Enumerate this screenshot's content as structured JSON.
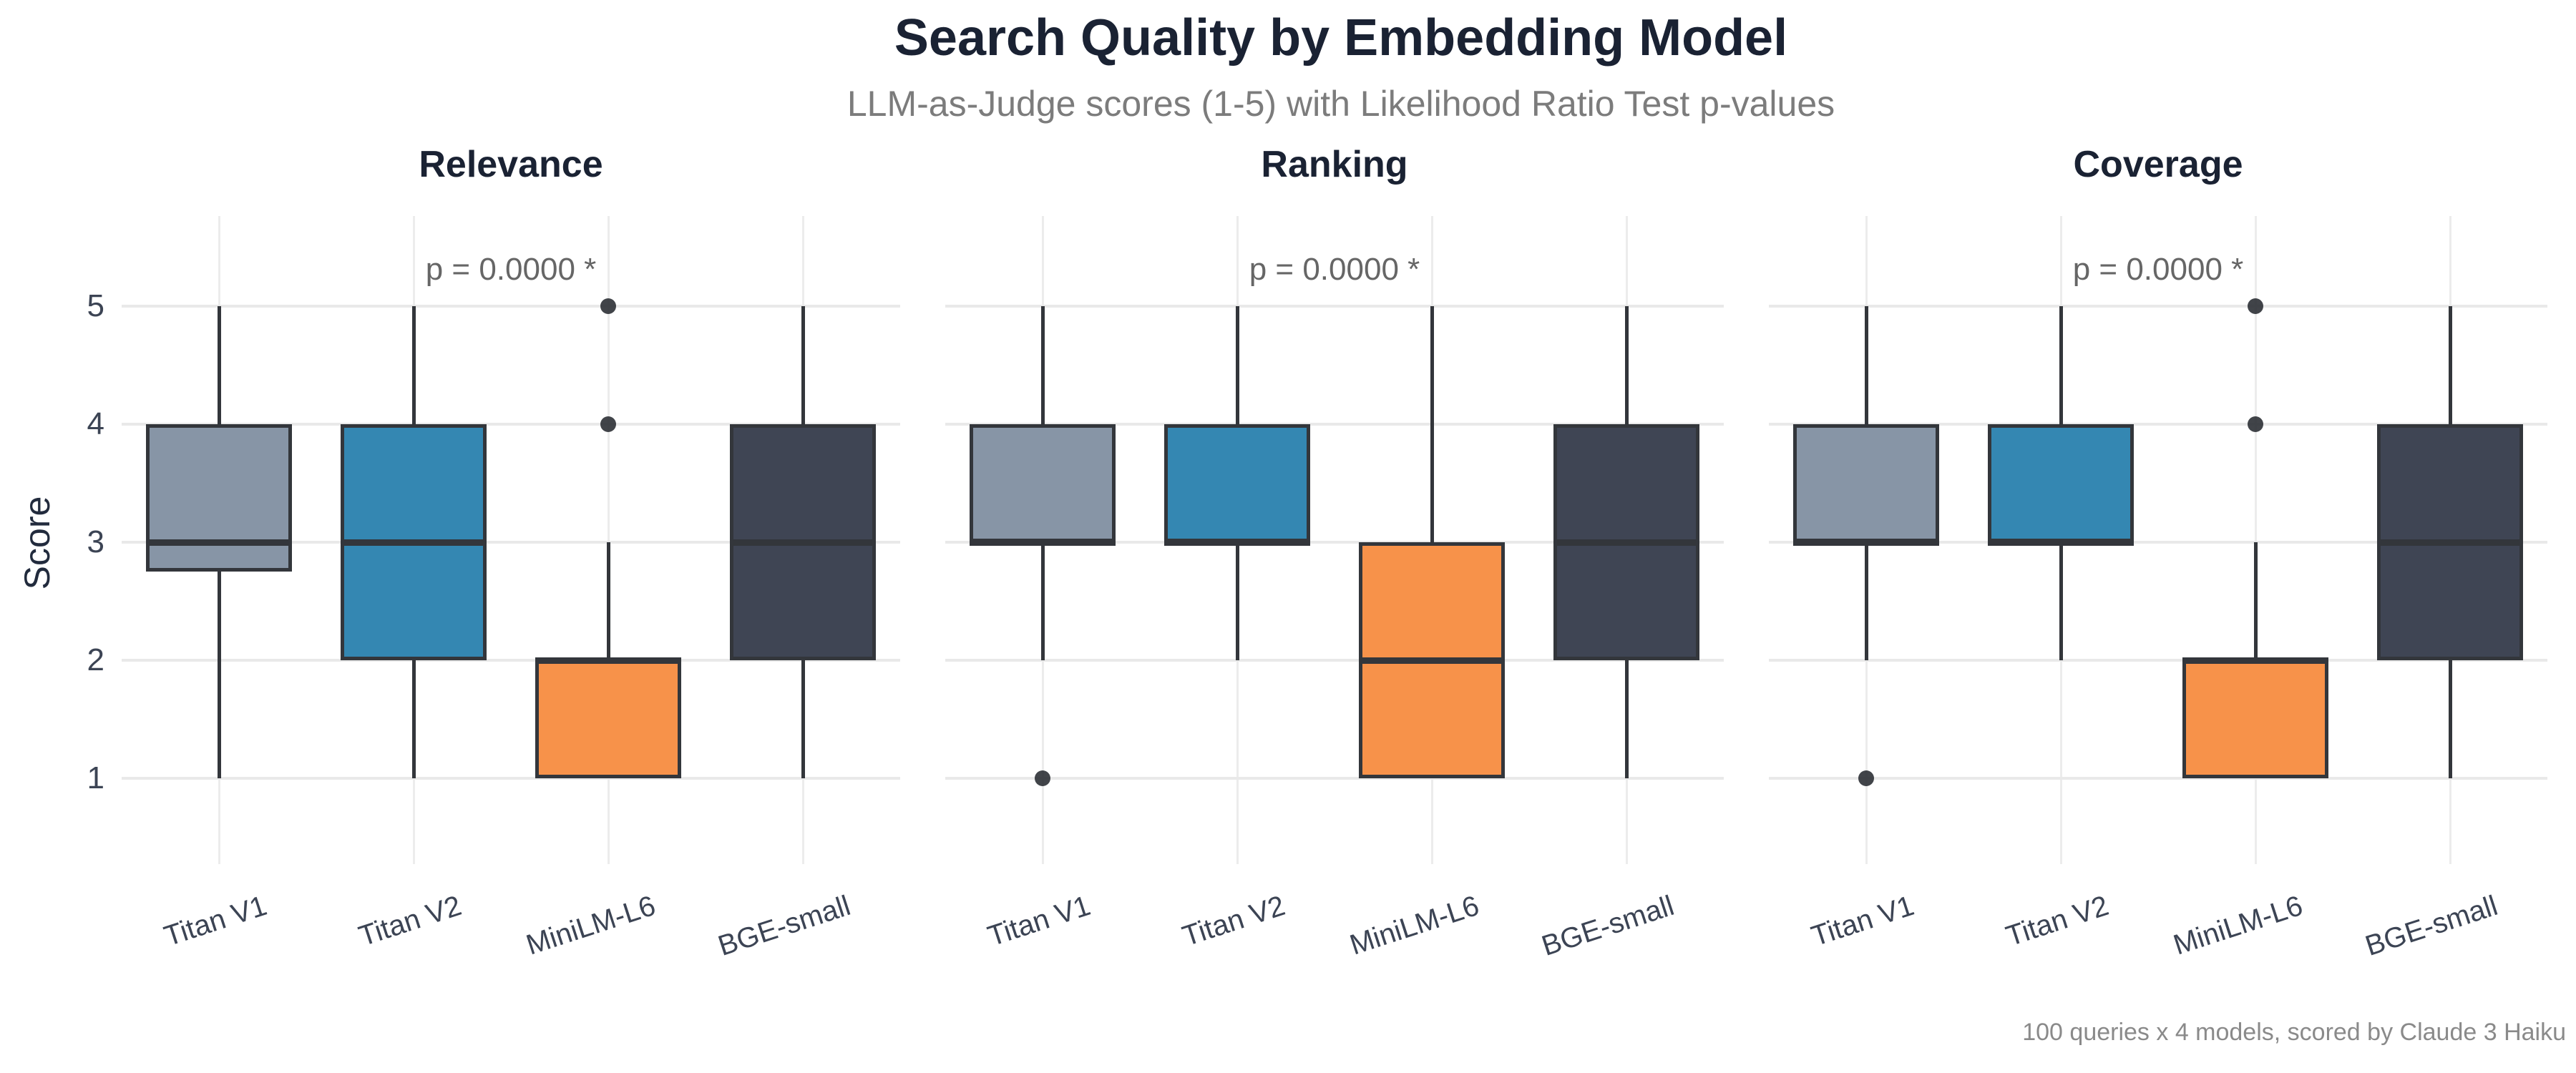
{
  "header": {
    "title": "Search Quality by Embedding Model",
    "subtitle": "LLM-as-Judge scores (1-5) with Likelihood Ratio Test p-values"
  },
  "caption": "100 queries x 4 models, scored by Claude 3 Haiku",
  "colors": {
    "background": "#FFFFFF",
    "title_text": "#1A2233",
    "subtitle_text": "#7C7C7C",
    "annotation_text": "#666666",
    "axis_text": "#3C4454",
    "gridline": "#E9E9E9",
    "box_border": "#33363B",
    "outlier_dot": "#2C3035",
    "caption_text": "#8A8A8A"
  },
  "chart_data": {
    "type": "boxplot",
    "title": "Search Quality by Embedding Model",
    "subtitle": "LLM-as-Judge scores (1-5) with Likelihood Ratio Test p-values",
    "ylabel": "Score",
    "yticks": [
      1,
      2,
      3,
      4,
      5
    ],
    "ylim": [
      1,
      5
    ],
    "grid": true,
    "legend_position": "none",
    "categories": [
      "Titan V1",
      "Titan V2",
      "MiniLM-L6",
      "BGE-small"
    ],
    "series_colors": {
      "Titan V1": "#8795A6",
      "Titan V2": "#3487B2",
      "MiniLM-L6": "#F7924A",
      "BGE-small": "#3F4554"
    },
    "panels": [
      {
        "title": "Relevance",
        "annotation": "p = 0.0000 *",
        "boxes": [
          {
            "model": "Titan V1",
            "whisker_low": 1,
            "q1": 2.75,
            "median": 3,
            "q3": 4,
            "whisker_high": 5,
            "outliers": []
          },
          {
            "model": "Titan V2",
            "whisker_low": 1,
            "q1": 2,
            "median": 3,
            "q3": 4,
            "whisker_high": 5,
            "outliers": []
          },
          {
            "model": "MiniLM-L6",
            "whisker_low": 1,
            "q1": 1,
            "median": 2,
            "q3": 2,
            "whisker_high": 3,
            "outliers": [
              4,
              5
            ]
          },
          {
            "model": "BGE-small",
            "whisker_low": 1,
            "q1": 2,
            "median": 3,
            "q3": 4,
            "whisker_high": 5,
            "outliers": []
          }
        ]
      },
      {
        "title": "Ranking",
        "annotation": "p = 0.0000 *",
        "boxes": [
          {
            "model": "Titan V1",
            "whisker_low": 2,
            "q1": 3,
            "median": 3,
            "q3": 4,
            "whisker_high": 5,
            "outliers": [
              1
            ]
          },
          {
            "model": "Titan V2",
            "whisker_low": 2,
            "q1": 3,
            "median": 3,
            "q3": 4,
            "whisker_high": 5,
            "outliers": []
          },
          {
            "model": "MiniLM-L6",
            "whisker_low": 1,
            "q1": 1,
            "median": 2,
            "q3": 3,
            "whisker_high": 5,
            "outliers": []
          },
          {
            "model": "BGE-small",
            "whisker_low": 1,
            "q1": 2,
            "median": 3,
            "q3": 4,
            "whisker_high": 5,
            "outliers": []
          }
        ]
      },
      {
        "title": "Coverage",
        "annotation": "p = 0.0000 *",
        "boxes": [
          {
            "model": "Titan V1",
            "whisker_low": 2,
            "q1": 3,
            "median": 3,
            "q3": 4,
            "whisker_high": 5,
            "outliers": [
              1
            ]
          },
          {
            "model": "Titan V2",
            "whisker_low": 2,
            "q1": 3,
            "median": 3,
            "q3": 4,
            "whisker_high": 5,
            "outliers": []
          },
          {
            "model": "MiniLM-L6",
            "whisker_low": 1,
            "q1": 1,
            "median": 2,
            "q3": 2,
            "whisker_high": 3,
            "outliers": [
              4,
              5
            ]
          },
          {
            "model": "BGE-small",
            "whisker_low": 1,
            "q1": 2,
            "median": 3,
            "q3": 4,
            "whisker_high": 5,
            "outliers": []
          }
        ]
      }
    ]
  }
}
